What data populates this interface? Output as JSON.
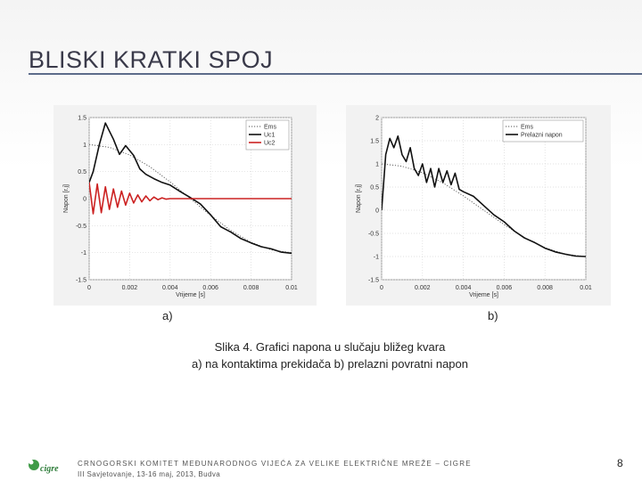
{
  "slide": {
    "title": "BLISKI KRATKI SPOJ",
    "label_a": "a)",
    "label_b": "b)",
    "caption_line1": "Slika 4. Grafici napona u slučaju bližeg kvara",
    "caption_line2": "a) na kontaktima prekidača b) prelazni povratni napon",
    "footer_line1": "CRNOGORSKI KOMITET MEĐUNARODNOG VIJEĆA ZA VELIKE ELEKTRIČNE MREŽE – CIGRE",
    "footer_line2": "III Savjetovanje, 13-16 maj, 2013, Budva",
    "page_number": "8",
    "logo_text": "cigre"
  },
  "chart_data": [
    {
      "type": "line",
      "xlabel": "Vrijeme [s]",
      "ylabel": "Napon [r.j]",
      "xlim": [
        0,
        0.01
      ],
      "ylim": [
        -1.5,
        1.5
      ],
      "xticks": [
        0,
        0.002,
        0.004,
        0.006,
        0.008,
        0.01
      ],
      "xtick_labels": [
        "0",
        "0.002",
        "0.004",
        "0.006",
        "0.008",
        "0.01"
      ],
      "yticks": [
        -1.5,
        -1,
        -0.5,
        0,
        0.5,
        1,
        1.5
      ],
      "ytick_labels": [
        "-1.5",
        "-1",
        "-0.5",
        "0",
        "0.5",
        "1",
        "1.5"
      ],
      "grid": true,
      "legend_position": "top-right",
      "series": [
        {
          "name": "Ems",
          "color": "#555555",
          "style": "dotted",
          "x": [
            0,
            0.001,
            0.002,
            0.003,
            0.004,
            0.005,
            0.006,
            0.007,
            0.008,
            0.009,
            0.01
          ],
          "y": [
            1.0,
            0.95,
            0.81,
            0.59,
            0.31,
            0.0,
            -0.31,
            -0.59,
            -0.81,
            -0.95,
            -1.0
          ]
        },
        {
          "name": "Uc1",
          "color": "#111111",
          "style": "solid",
          "x": [
            0,
            0.0002,
            0.0005,
            0.0008,
            0.0012,
            0.0015,
            0.0018,
            0.0022,
            0.0025,
            0.0028,
            0.0032,
            0.0036,
            0.004,
            0.0045,
            0.005,
            0.0055,
            0.006,
            0.0065,
            0.007,
            0.0075,
            0.008,
            0.0085,
            0.009,
            0.0095,
            0.01
          ],
          "y": [
            0.3,
            0.5,
            1.0,
            1.4,
            1.1,
            0.82,
            0.98,
            0.8,
            0.55,
            0.45,
            0.37,
            0.3,
            0.25,
            0.13,
            0.02,
            -0.1,
            -0.3,
            -0.52,
            -0.62,
            -0.74,
            -0.82,
            -0.89,
            -0.93,
            -0.99,
            -1.01
          ]
        },
        {
          "name": "Uc2",
          "color": "#cc2222",
          "style": "solid",
          "x": [
            0,
            0.0002,
            0.0004,
            0.0006,
            0.0008,
            0.001,
            0.0012,
            0.0014,
            0.0016,
            0.0018,
            0.002,
            0.0022,
            0.0024,
            0.0026,
            0.0028,
            0.003,
            0.0032,
            0.0034,
            0.0036,
            0.0038,
            0.004,
            0.0045,
            0.005,
            0.006,
            0.007,
            0.008,
            0.009,
            0.01
          ],
          "y": [
            0.3,
            -0.28,
            0.27,
            -0.26,
            0.22,
            -0.2,
            0.18,
            -0.16,
            0.14,
            -0.12,
            0.1,
            -0.08,
            0.07,
            -0.06,
            0.05,
            -0.04,
            0.03,
            -0.02,
            0.015,
            -0.01,
            0.0,
            0.0,
            0.0,
            0.0,
            0.0,
            0.0,
            0.0,
            0.0
          ]
        }
      ]
    },
    {
      "type": "line",
      "xlabel": "Vrijeme [s]",
      "ylabel": "Napon [r.j]",
      "xlim": [
        0,
        0.01
      ],
      "ylim": [
        -1.5,
        2
      ],
      "xticks": [
        0,
        0.002,
        0.004,
        0.006,
        0.008,
        0.01
      ],
      "xtick_labels": [
        "0",
        "0.002",
        "0.004",
        "0.006",
        "0.008",
        "0.01"
      ],
      "yticks": [
        -1.5,
        -1,
        -0.5,
        0,
        0.5,
        1,
        1.5,
        2
      ],
      "ytick_labels": [
        "-1.5",
        "-1",
        "-0.5",
        "0",
        "0.5",
        "1",
        "1.5",
        "2"
      ],
      "grid": true,
      "legend_position": "top-right",
      "series": [
        {
          "name": "Ems",
          "color": "#555555",
          "style": "dotted",
          "x": [
            0,
            0.001,
            0.002,
            0.003,
            0.004,
            0.005,
            0.006,
            0.007,
            0.008,
            0.009,
            0.01
          ],
          "y": [
            1.0,
            0.95,
            0.81,
            0.59,
            0.31,
            0.0,
            -0.31,
            -0.59,
            -0.81,
            -0.95,
            -1.0
          ]
        },
        {
          "name": "Prelazni napon",
          "color": "#111111",
          "style": "solid",
          "x": [
            0,
            0.0002,
            0.0004,
            0.0006,
            0.0008,
            0.001,
            0.0012,
            0.0014,
            0.0016,
            0.0018,
            0.002,
            0.0022,
            0.0024,
            0.0026,
            0.0028,
            0.003,
            0.0032,
            0.0034,
            0.0036,
            0.0038,
            0.004,
            0.0045,
            0.005,
            0.0055,
            0.006,
            0.0065,
            0.007,
            0.0075,
            0.008,
            0.0085,
            0.009,
            0.0095,
            0.01
          ],
          "y": [
            0.0,
            1.2,
            1.55,
            1.35,
            1.6,
            1.2,
            1.05,
            1.35,
            0.9,
            0.75,
            1.0,
            0.6,
            0.9,
            0.5,
            0.9,
            0.6,
            0.85,
            0.55,
            0.8,
            0.45,
            0.4,
            0.3,
            0.1,
            -0.1,
            -0.25,
            -0.45,
            -0.6,
            -0.7,
            -0.82,
            -0.9,
            -0.95,
            -0.99,
            -1.0
          ]
        }
      ]
    }
  ]
}
